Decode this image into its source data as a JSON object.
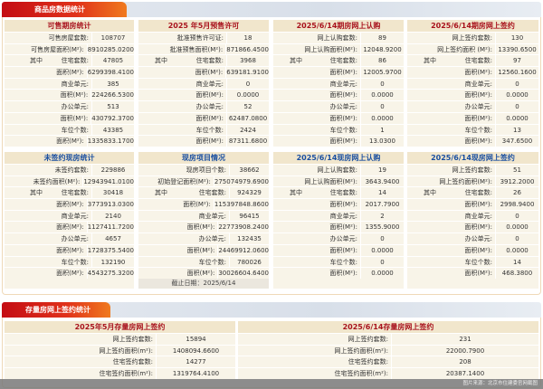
{
  "section1": {
    "title": "商品房数据统计"
  },
  "section2": {
    "title": "存量房网上签约统计"
  },
  "colors": {
    "red_title": "#a8121c",
    "blue_title": "#1a4fa0",
    "tab_red": "#c40d14"
  },
  "panels": [
    {
      "title": "可售期房统计",
      "color": "red",
      "rows": [
        [
          "",
          "可售房屋套数:",
          "108707"
        ],
        [
          "",
          "可售房屋面积(M²):",
          "8910285.0200"
        ],
        [
          "其中",
          "住宅套数:",
          "47805"
        ],
        [
          "",
          "面积(M²):",
          "6299398.4100"
        ],
        [
          "",
          "商业单元:",
          "385"
        ],
        [
          "",
          "面积(M²):",
          "224266.5300"
        ],
        [
          "",
          "办公单元:",
          "513"
        ],
        [
          "",
          "面积(M²):",
          "430792.3700"
        ],
        [
          "",
          "车位个数:",
          "43385"
        ],
        [
          "",
          "面积(M²):",
          "1335833.1700"
        ]
      ]
    },
    {
      "title": "2025 年5月预售许可",
      "color": "red",
      "rows": [
        [
          "",
          "批准预售许可证:",
          "18"
        ],
        [
          "",
          "批准预售面积(M²):",
          "871866.4500"
        ],
        [
          "其中",
          "住宅套数:",
          "3968"
        ],
        [
          "",
          "面积(M²):",
          "639181.9100"
        ],
        [
          "",
          "商业单元:",
          "0"
        ],
        [
          "",
          "面积(M²):",
          "0.0000"
        ],
        [
          "",
          "办公单元:",
          "52"
        ],
        [
          "",
          "面积(M²):",
          "62487.0800"
        ],
        [
          "",
          "车位个数:",
          "2424"
        ],
        [
          "",
          "面积(M²):",
          "87311.6800"
        ]
      ]
    },
    {
      "title": "2025/6/14期房网上认购",
      "color": "red",
      "rows": [
        [
          "",
          "网上认购套数:",
          "89"
        ],
        [
          "",
          "网上认购面积(M²):",
          "12048.9200"
        ],
        [
          "其中",
          "住宅套数:",
          "86"
        ],
        [
          "",
          "面积(M²):",
          "12005.9700"
        ],
        [
          "",
          "商业单元:",
          "0"
        ],
        [
          "",
          "面积(M²):",
          "0.0000"
        ],
        [
          "",
          "办公单元:",
          "0"
        ],
        [
          "",
          "面积(M²):",
          "0.0000"
        ],
        [
          "",
          "车位个数:",
          "1"
        ],
        [
          "",
          "面积(M²):",
          "13.0300"
        ]
      ]
    },
    {
      "title": "2025/6/14期房网上签约",
      "color": "red",
      "rows": [
        [
          "",
          "网上签约套数:",
          "130"
        ],
        [
          "",
          "网上签约面积 (M²):",
          "13390.6500"
        ],
        [
          "其中",
          "住宅套数:",
          "97"
        ],
        [
          "",
          "面积(M²):",
          "12560.1600"
        ],
        [
          "",
          "商业单元:",
          "0"
        ],
        [
          "",
          "面积(M²):",
          "0.0000"
        ],
        [
          "",
          "办公单元:",
          "0"
        ],
        [
          "",
          "面积(M²):",
          "0.0000"
        ],
        [
          "",
          "车位个数:",
          "13"
        ],
        [
          "",
          "面积(M²):",
          "347.6500"
        ]
      ]
    },
    {
      "title": "未签约现房统计",
      "color": "blue",
      "rows": [
        [
          "",
          "未签约套数:",
          "229886"
        ],
        [
          "",
          "未签约面积(M²):",
          "12943941.0100"
        ],
        [
          "其中",
          "住宅套数:",
          "30418"
        ],
        [
          "",
          "面积(M²):",
          "3773913.0300"
        ],
        [
          "",
          "商业单元:",
          "2140"
        ],
        [
          "",
          "面积(M²):",
          "1127411.7200"
        ],
        [
          "",
          "办公单元:",
          "4657"
        ],
        [
          "",
          "面积(M²):",
          "1728375.5400"
        ],
        [
          "",
          "车位个数:",
          "132190"
        ],
        [
          "",
          "面积(M²):",
          "4543275.3200"
        ]
      ]
    },
    {
      "title": "现房项目情况",
      "color": "blue",
      "rows": [
        [
          "",
          "现房项目个数:",
          "38662"
        ],
        [
          "",
          "初始登记面积(M²):",
          "275074979.6900"
        ],
        [
          "其中",
          "住宅套数:",
          "924329"
        ],
        [
          "",
          "面积(M²):",
          "115397848.8600"
        ],
        [
          "",
          "商业单元:",
          "96415"
        ],
        [
          "",
          "面积(M²):",
          "22773908.2400"
        ],
        [
          "",
          "办公单元:",
          "132435"
        ],
        [
          "",
          "面积(M²):",
          "24469912.0600"
        ],
        [
          "",
          "车位个数:",
          "780026"
        ],
        [
          "",
          "面积(M²):",
          "30026604.6400"
        ]
      ],
      "footer": "截止日期：2025/6/14"
    },
    {
      "title": "2025/6/14现房网上认购",
      "color": "blue",
      "rows": [
        [
          "",
          "网上认购套数:",
          "19"
        ],
        [
          "",
          "网上认购面积(M²):",
          "3643.9400"
        ],
        [
          "其中",
          "住宅套数:",
          "14"
        ],
        [
          "",
          "面积(M²):",
          "2017.7900"
        ],
        [
          "",
          "商业单元:",
          "2"
        ],
        [
          "",
          "面积(M²):",
          "1355.9000"
        ],
        [
          "",
          "办公单元:",
          "0"
        ],
        [
          "",
          "面积(M²):",
          "0.0000"
        ],
        [
          "",
          "车位个数:",
          "0"
        ],
        [
          "",
          "面积(M²):",
          "0.0000"
        ]
      ]
    },
    {
      "title": "2025/6/14现房网上签约",
      "color": "blue",
      "rows": [
        [
          "",
          "网上签约套数:",
          "51"
        ],
        [
          "",
          "网上签约面积(M²):",
          "3912.2000"
        ],
        [
          "其中",
          "住宅套数:",
          "26"
        ],
        [
          "",
          "面积(M²):",
          "2998.9400"
        ],
        [
          "",
          "商业单元:",
          "0"
        ],
        [
          "",
          "面积(M²):",
          "0.0000"
        ],
        [
          "",
          "办公单元:",
          "0"
        ],
        [
          "",
          "面积(M²):",
          "0.0000"
        ],
        [
          "",
          "车位个数:",
          "14"
        ],
        [
          "",
          "面积(M²):",
          "468.3800"
        ]
      ]
    },
    {
      "title": "2025年5月存量房网上签约",
      "color": "red",
      "rows": [
        [
          "",
          "网上签约套数:",
          "15894"
        ],
        [
          "",
          "网上签约面积(m²):",
          "1408094.6600"
        ],
        [
          "",
          "住宅签约套数:",
          "14277"
        ],
        [
          "",
          "住宅签约面积(m²):",
          "1319764.4100"
        ]
      ]
    },
    {
      "title": "2025/6/14存量房网上签约",
      "color": "red",
      "rows": [
        [
          "",
          "网上签约套数:",
          "231"
        ],
        [
          "",
          "网上签约面积(m²):",
          "22000.7900"
        ],
        [
          "",
          "住宅签约套数:",
          "208"
        ],
        [
          "",
          "住宅签约面积(m²):",
          "20387.1400"
        ]
      ]
    }
  ],
  "credit": "图片来源：北京市住建委官网截图"
}
